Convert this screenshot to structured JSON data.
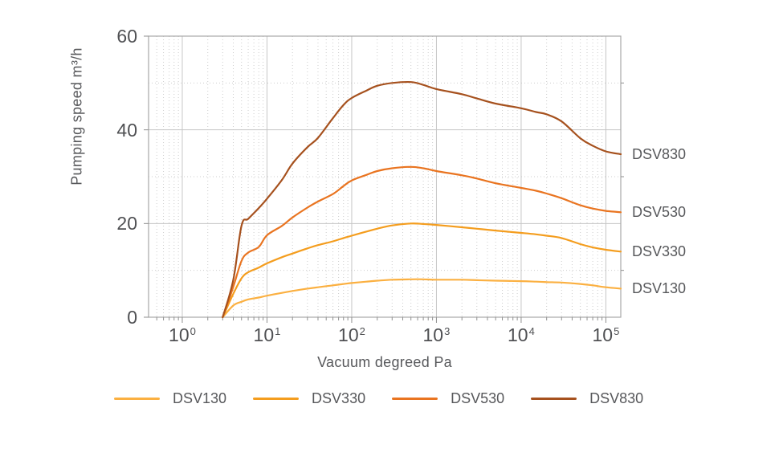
{
  "chart_data": {
    "type": "line",
    "title": "",
    "xlabel": "Vacuum degreed Pa",
    "ylabel": "Pumping speed m³/h",
    "x_axis": {
      "scale": "log",
      "min": 0.4,
      "max": 150000,
      "decade_labels": [
        {
          "base": "10",
          "exp": "0"
        },
        {
          "base": "10",
          "exp": "1"
        },
        {
          "base": "10",
          "exp": "2"
        },
        {
          "base": "10",
          "exp": "3"
        },
        {
          "base": "10",
          "exp": "4"
        },
        {
          "base": "10",
          "exp": "5"
        }
      ]
    },
    "y_axis": {
      "min": 0,
      "max": 60,
      "major_ticks": [
        0,
        20,
        40,
        60
      ],
      "major_gridlines": [
        20,
        40
      ],
      "minor_gridlines": [
        10,
        30,
        50
      ]
    },
    "grid": true,
    "legend_position": "bottom",
    "x": [
      3,
      4,
      5,
      6,
      8,
      10,
      15,
      20,
      30,
      40,
      60,
      80,
      100,
      150,
      200,
      300,
      500,
      700,
      1000,
      2000,
      3000,
      5000,
      10000,
      15000,
      20000,
      30000,
      50000,
      70000,
      100000,
      150000
    ],
    "series": [
      {
        "name": "DSV130",
        "color": "#FBB041",
        "values": [
          0,
          2.5,
          3.3,
          3.8,
          4.2,
          4.6,
          5.2,
          5.6,
          6.1,
          6.4,
          6.8,
          7.1,
          7.3,
          7.6,
          7.8,
          8.0,
          8.1,
          8.1,
          8.0,
          8.0,
          7.9,
          7.8,
          7.7,
          7.6,
          7.5,
          7.4,
          7.1,
          6.8,
          6.4,
          6.1
        ]
      },
      {
        "name": "DSV330",
        "color": "#F49D1E",
        "values": [
          0,
          5.0,
          8.3,
          9.6,
          10.6,
          11.5,
          12.8,
          13.6,
          14.7,
          15.4,
          16.2,
          16.9,
          17.4,
          18.3,
          18.9,
          19.6,
          20.0,
          19.9,
          19.7,
          19.2,
          18.9,
          18.5,
          18.0,
          17.7,
          17.4,
          16.9,
          15.6,
          14.9,
          14.4,
          14.0
        ]
      },
      {
        "name": "DSV530",
        "color": "#E97420",
        "values": [
          0,
          6.5,
          12.0,
          13.8,
          15.0,
          17.5,
          19.5,
          21.3,
          23.4,
          24.7,
          26.3,
          28.0,
          29.2,
          30.4,
          31.2,
          31.8,
          32.1,
          31.8,
          31.2,
          30.3,
          29.6,
          28.6,
          27.6,
          27.0,
          26.4,
          25.4,
          23.9,
          23.2,
          22.7,
          22.4
        ]
      },
      {
        "name": "DSV830",
        "color": "#A6511E",
        "values": [
          0,
          8.0,
          19.5,
          21.0,
          23.3,
          25.3,
          29.3,
          32.8,
          36.3,
          38.3,
          42.5,
          45.3,
          46.8,
          48.4,
          49.4,
          50.0,
          50.2,
          49.6,
          48.7,
          47.6,
          46.7,
          45.6,
          44.6,
          43.8,
          43.3,
          41.8,
          38.2,
          36.6,
          35.4,
          34.8
        ]
      }
    ]
  },
  "colors": {
    "text": "#57585B",
    "tick_text": "#4f5053",
    "border": "#a8a8a8",
    "grid_major": "#c6c6c6",
    "grid_minor": "#cdcdcd",
    "tick": "#8f8f8f",
    "background": "#ffffff"
  }
}
